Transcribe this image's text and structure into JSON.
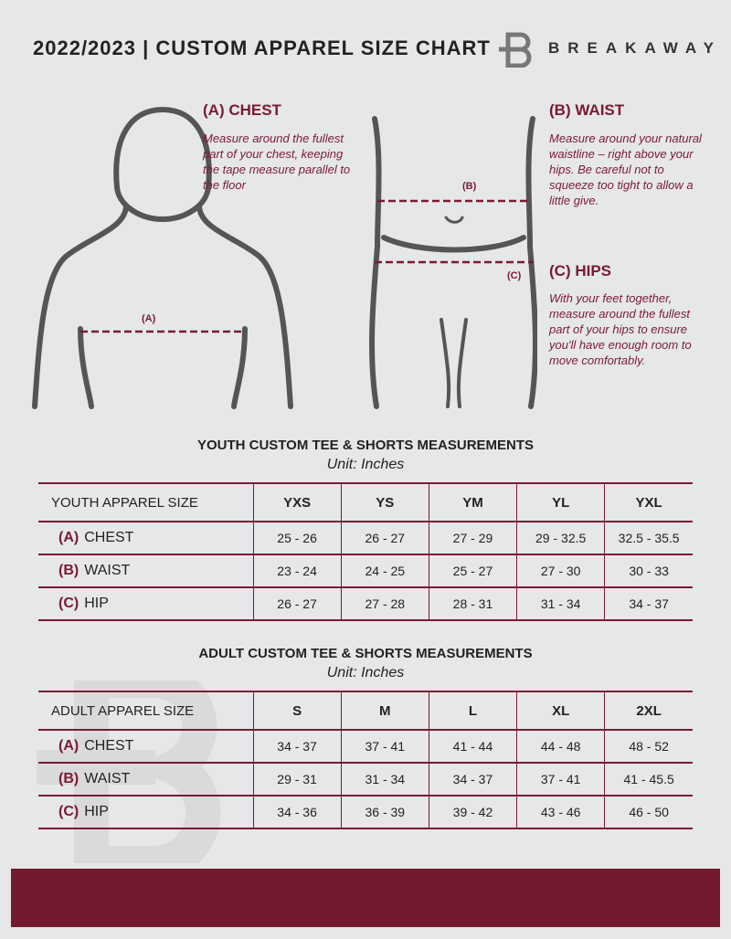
{
  "header": {
    "title": "2022/2023 | CUSTOM APPAREL SIZE CHART",
    "brand": "BREAKAWAY"
  },
  "colors": {
    "accent": "#7a1a31",
    "background": "#e6e7e9",
    "footer": "#731a2f"
  },
  "guide": {
    "chest": {
      "title": "(A) CHEST",
      "text": "Measure around the fullest part of your chest, keeping the tape measure parallel to the floor",
      "marker": "(A)"
    },
    "waist": {
      "title": "(B) WAIST",
      "text": "Measure around your natural waistline – right above your hips. Be careful not to squeeze too tight to allow a little give.",
      "marker": "(B)"
    },
    "hips": {
      "title": "(C) HIPS",
      "text": "With your feet together, measure around the fullest part of your hips to ensure you'll have enough room to move comfortably.",
      "marker": "(C)"
    }
  },
  "youth": {
    "title": "YOUTH CUSTOM TEE & SHORTS MEASUREMENTS",
    "unit": "Unit: Inches",
    "header": "YOUTH APPAREL SIZE",
    "sizes": [
      "YXS",
      "YS",
      "YM",
      "YL",
      "YXL"
    ],
    "rows": [
      {
        "label": "(A)",
        "name": "CHEST",
        "values": [
          "25 - 26",
          "26 - 27",
          "27 - 29",
          "29 - 32.5",
          "32.5 - 35.5"
        ]
      },
      {
        "label": "(B)",
        "name": "WAIST",
        "values": [
          "23 - 24",
          "24 - 25",
          "25 - 27",
          "27 - 30",
          "30 - 33"
        ]
      },
      {
        "label": "(C)",
        "name": "HIP",
        "values": [
          "26 - 27",
          "27 - 28",
          "28 - 31",
          "31 - 34",
          "34 - 37"
        ]
      }
    ]
  },
  "adult": {
    "title": "ADULT CUSTOM TEE & SHORTS MEASUREMENTS",
    "unit": "Unit: Inches",
    "header": "ADULT APPAREL SIZE",
    "sizes": [
      "S",
      "M",
      "L",
      "XL",
      "2XL"
    ],
    "rows": [
      {
        "label": "(A)",
        "name": "CHEST",
        "values": [
          "34 - 37",
          "37 - 41",
          "41 - 44",
          "44 - 48",
          "48 - 52"
        ]
      },
      {
        "label": "(B)",
        "name": "WAIST",
        "values": [
          "29 - 31",
          "31 - 34",
          "34 - 37",
          "37 - 41",
          "41 - 45.5"
        ]
      },
      {
        "label": "(C)",
        "name": "HIP",
        "values": [
          "34 - 36",
          "36 - 39",
          "39 - 42",
          "43 - 46",
          "46 - 50"
        ]
      }
    ]
  }
}
